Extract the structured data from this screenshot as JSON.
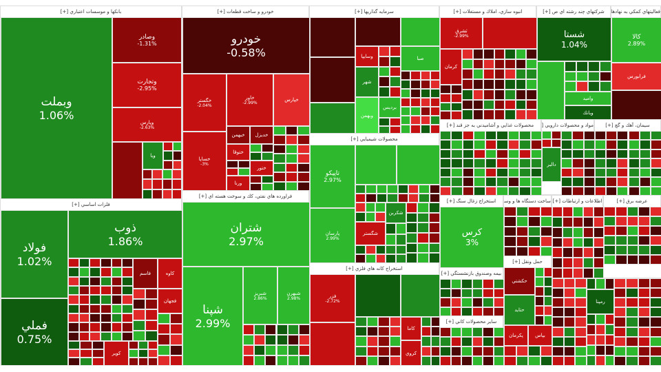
{
  "sectors": {
    "banks": "بانكها و موسسات اعتباري [+]",
    "auto": "خودرو و ساخت قطعات [+]",
    "metals": "فلزات اساسي [+]",
    "petroleum": "فراورده هاي نفتي، كك و سوخت هسته اي [+]",
    "investment": "سرمايه گذاريها [+]",
    "chemicals": "محصولات شيميايي [+]",
    "mining": "استخراج كانه هاي فلزي [+]",
    "realestate": "انبوه سازي، املاك و مستغلات [+]",
    "multi": "شركتهاي چند رشته اي ص [+]",
    "financial": "فعاليتهاي كمكي به نهادهاي مالي [+]",
    "food": "محصولات غذايي و آشاميدني به جز قند [+]",
    "pharma": "مواد و محصولات دارويي [+]",
    "cement": "سيمان، آهك و گچ [+]",
    "coal": "استخراج زغال سنگ [+]",
    "electric": "ساخت دستگاه ها و وسايل برقي [+]",
    "telecom": "اطلاعات و ارتباطات [+]",
    "utility": "عرضه برق [+]",
    "insurance": "بيمه وصندوق بازنشستگي [+]",
    "transport": "حمل ونقل [+]",
    "other_mining": "ساير محصولات كاني [+]"
  },
  "tiles": {
    "vbmellat": {
      "name": "وبملت",
      "pct": "1.06%"
    },
    "vsader": {
      "name": "وصادر",
      "pct": "-1.31%"
    },
    "vtejarat": {
      "name": "وتجارت",
      "pct": "-2.95%"
    },
    "vpars": {
      "name": "وپارس",
      "pct": "-2.63%"
    },
    "vb_small": {
      "name": "ويا"
    },
    "khodro": {
      "name": "خودرو",
      "pct": "-0.58%"
    },
    "khgostar": {
      "name": "خگستر",
      "pct": "-2.04%"
    },
    "khavar": {
      "name": "خاور",
      "pct": "-2.99%"
    },
    "khpars": {
      "name": "خپارس"
    },
    "khsapa": {
      "name": "خساپا",
      "pct": "-3%"
    },
    "khbahman": {
      "name": "خبهمن"
    },
    "khdizel": {
      "name": "خديزل"
    },
    "khtoga": {
      "name": "ختوقا"
    },
    "khtor": {
      "name": "ختور"
    },
    "varna": {
      "name": "ورنا"
    },
    "foolad": {
      "name": "فولاد",
      "pct": "1.02%"
    },
    "fameli": {
      "name": "فملي",
      "pct": "0.75%"
    },
    "zob": {
      "name": "ذوب",
      "pct": "1.86%"
    },
    "kaveh": {
      "name": "كاوه"
    },
    "fasem": {
      "name": "فاسم"
    },
    "fjahan": {
      "name": "فجهان"
    },
    "kavir": {
      "name": "كوير"
    },
    "shetran": {
      "name": "شتران",
      "pct": "2.97%"
    },
    "shapna": {
      "name": "شپنا",
      "pct": "2.99%"
    },
    "shabriz": {
      "name": "شبريز",
      "pct": "2.86%"
    },
    "shbehran": {
      "name": "شبهرن",
      "pct": "2.98%"
    },
    "vsaipa": {
      "name": "وسايپا"
    },
    "saba": {
      "name": "صبا"
    },
    "shahr": {
      "name": "شهر"
    },
    "pardis": {
      "name": "برديس"
    },
    "vbahman": {
      "name": "وبهمن"
    },
    "tapiko": {
      "name": "تاپيكو",
      "pct": "2.97%"
    },
    "parsan": {
      "name": "پارسان",
      "pct": "2.99%"
    },
    "shgostar": {
      "name": "شگستر"
    },
    "shkarbon": {
      "name": "شكربن"
    },
    "mining_a": {
      "name": "فزر",
      "pct": "-2.72%"
    },
    "kama": {
      "name": "كاما"
    },
    "kroy": {
      "name": "كروي"
    },
    "ssharq": {
      "name": "ثشرق",
      "pct": "-2.99%"
    },
    "kerman": {
      "name": "كرمان"
    },
    "shasta": {
      "name": "شستا",
      "pct": "1.04%"
    },
    "vomid": {
      "name": "واميد"
    },
    "vbank": {
      "name": "وبانك"
    },
    "kala": {
      "name": "كالا",
      "pct": "2.89%"
    },
    "fara": {
      "name": "فرابورس"
    },
    "kars": {
      "name": "كرس",
      "pct": "3%"
    },
    "hkeshti": {
      "name": "حكشتي"
    },
    "htayd": {
      "name": "حتايد"
    },
    "pkerman": {
      "name": "پكرمان"
    },
    "bpas": {
      "name": "بپاس"
    },
    "rampna": {
      "name": "رمپنا"
    },
    "darou": {
      "name": "دالبر"
    }
  },
  "colors": {
    "green": "#1f8a1f",
    "dark_green": "#0f5c0f",
    "red": "#c41010",
    "dark_red": "#4a0505"
  }
}
